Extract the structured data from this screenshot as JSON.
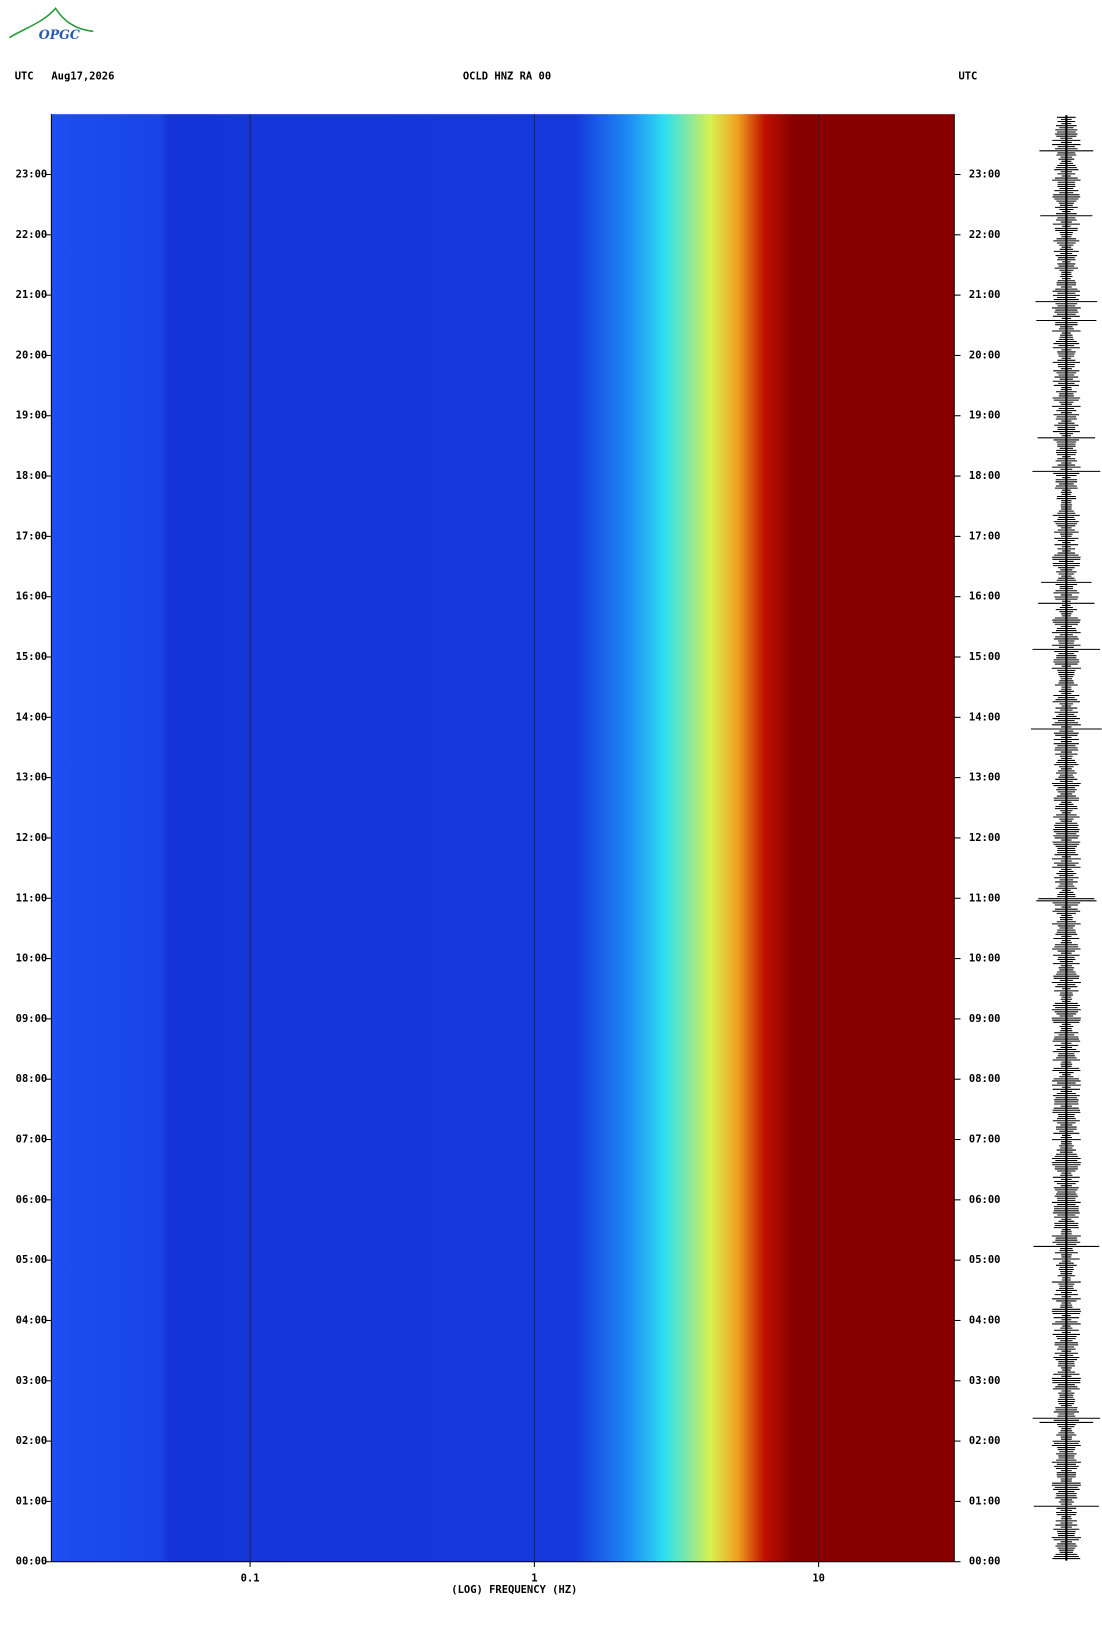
{
  "logo": "OPGC",
  "chart_data": {
    "type": "spectrogram",
    "time_zone": "UTC",
    "date": "Aug17,2026",
    "title": "OCLD HNZ RA 00",
    "right_label": "UTC",
    "xlabel": "(LOG) FREQUENCY (HZ)",
    "xscale": "log",
    "xlim": [
      0.02,
      30
    ],
    "xticks": [
      0.1,
      1,
      10
    ],
    "ylim": [
      0,
      24
    ],
    "yticks": [
      {
        "value": 0,
        "label": "00:00"
      },
      {
        "value": 1,
        "label": "01:00"
      },
      {
        "value": 2,
        "label": "02:00"
      },
      {
        "value": 3,
        "label": "03:00"
      },
      {
        "value": 4,
        "label": "04:00"
      },
      {
        "value": 5,
        "label": "05:00"
      },
      {
        "value": 6,
        "label": "06:00"
      },
      {
        "value": 7,
        "label": "07:00"
      },
      {
        "value": 8,
        "label": "08:00"
      },
      {
        "value": 9,
        "label": "09:00"
      },
      {
        "value": 10,
        "label": "10:00"
      },
      {
        "value": 11,
        "label": "11:00"
      },
      {
        "value": 12,
        "label": "12:00"
      },
      {
        "value": 13,
        "label": "13:00"
      },
      {
        "value": 14,
        "label": "14:00"
      },
      {
        "value": 15,
        "label": "15:00"
      },
      {
        "value": 16,
        "label": "16:00"
      },
      {
        "value": 17,
        "label": "17:00"
      },
      {
        "value": 18,
        "label": "18:00"
      },
      {
        "value": 19,
        "label": "19:00"
      },
      {
        "value": 20,
        "label": "20:00"
      },
      {
        "value": 21,
        "label": "21:00"
      },
      {
        "value": 22,
        "label": "22:00"
      },
      {
        "value": 23,
        "label": "23:00"
      }
    ],
    "grid": true
  }
}
